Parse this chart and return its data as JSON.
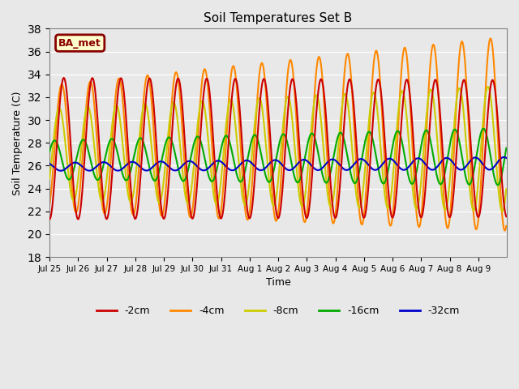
{
  "title": "Soil Temperatures Set B",
  "xlabel": "Time",
  "ylabel": "Soil Temperature (C)",
  "ylim": [
    18,
    38
  ],
  "yticks": [
    18,
    20,
    22,
    24,
    26,
    28,
    30,
    32,
    34,
    36,
    38
  ],
  "background_color": "#e8e8e8",
  "legend_label": "BA_met",
  "colors": {
    "-2cm": "#cc0000",
    "-4cm": "#ff8800",
    "-8cm": "#cccc00",
    "-16cm": "#00aa00",
    "-32cm": "#0000cc"
  },
  "x_tick_labels": [
    "Jul 25",
    "Jul 26",
    "Jul 27",
    "Jul 28",
    "Jul 29",
    "Jul 30",
    "Jul 31",
    "Aug 1",
    "Aug 2",
    "Aug 3",
    "Aug 4",
    "Aug 5",
    "Aug 6",
    "Aug 7",
    "Aug 8",
    "Aug 9"
  ],
  "n_days": 16
}
